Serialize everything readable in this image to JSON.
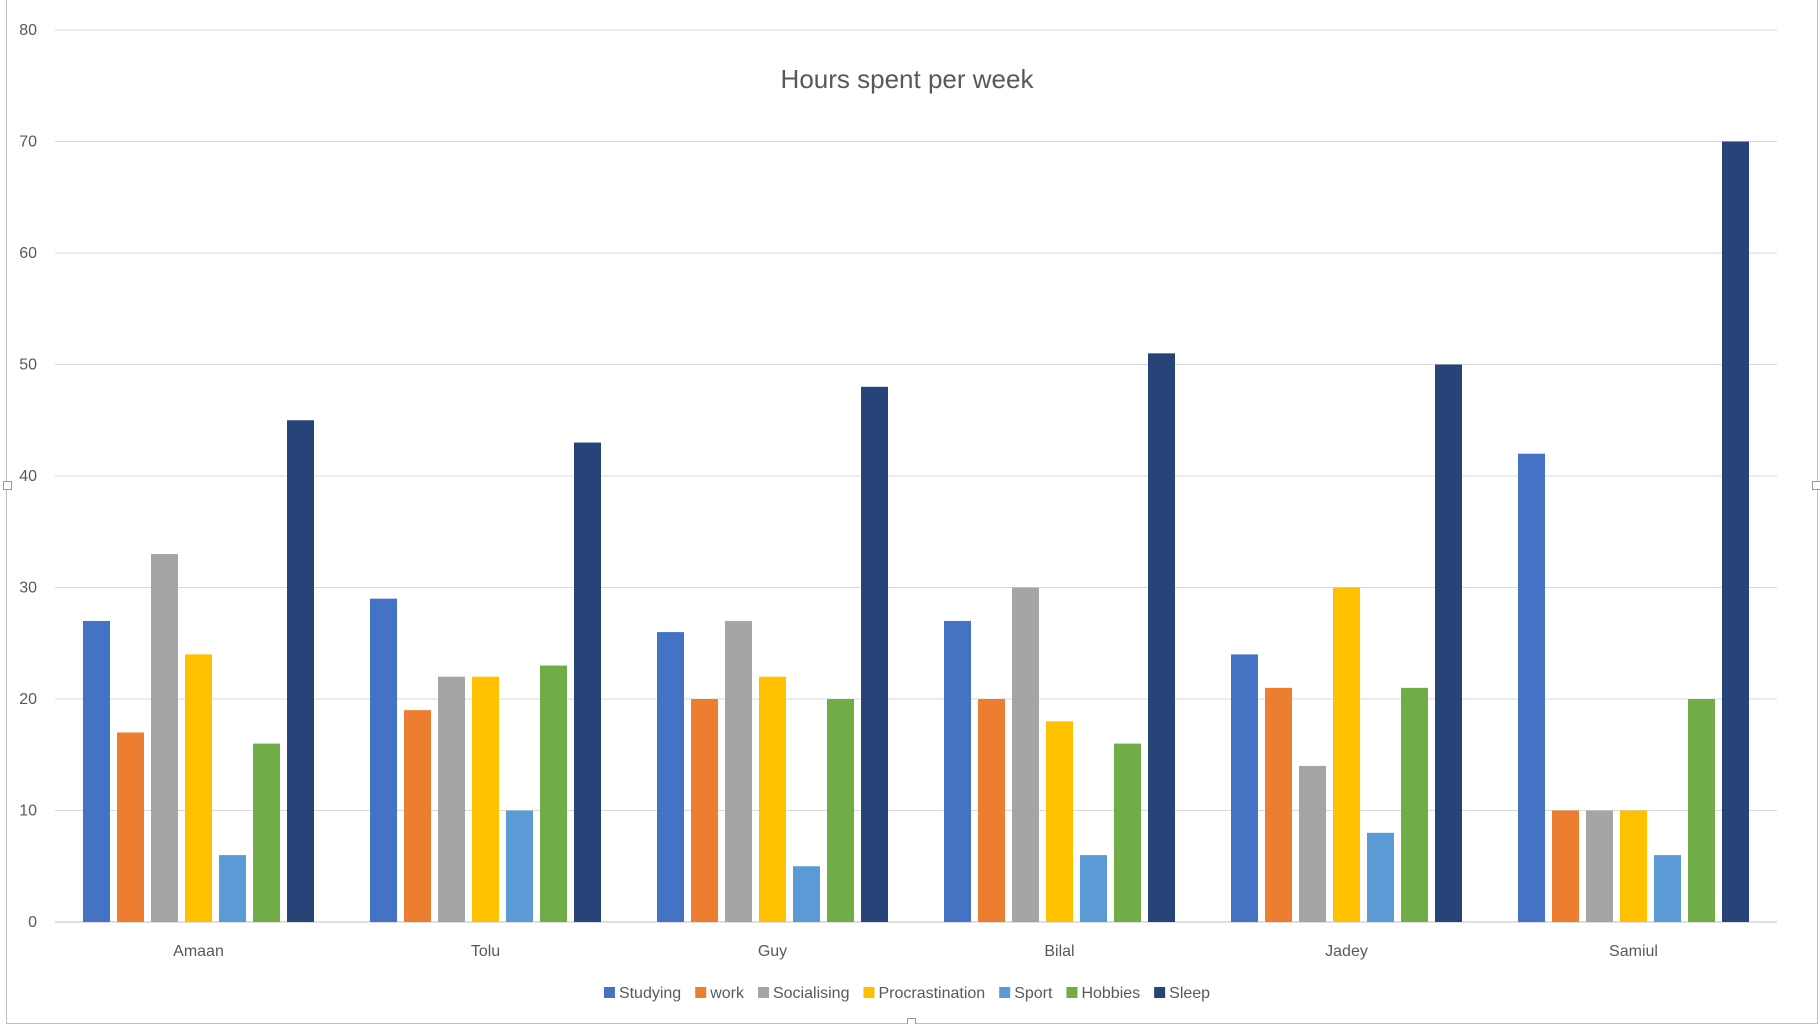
{
  "chart_data": {
    "type": "bar",
    "title": "Hours spent per week",
    "xlabel": "",
    "ylabel": "",
    "categories": [
      "Amaan",
      "Tolu",
      "Guy",
      "Bilal",
      "Jadey",
      "Samiul"
    ],
    "ylim": [
      0,
      80
    ],
    "yticks": [
      0,
      10,
      20,
      30,
      40,
      50,
      60,
      70,
      80
    ],
    "grid": true,
    "legend_position": "bottom",
    "series": [
      {
        "name": "Studying",
        "color": "#4472C4",
        "values": [
          27,
          29,
          26,
          27,
          24,
          42
        ]
      },
      {
        "name": "work",
        "color": "#ED7D31",
        "values": [
          17,
          19,
          20,
          20,
          21,
          10
        ]
      },
      {
        "name": "Socialising",
        "color": "#A5A5A5",
        "values": [
          33,
          22,
          27,
          30,
          14,
          10
        ]
      },
      {
        "name": "Procrastination",
        "color": "#FFC000",
        "values": [
          24,
          22,
          22,
          18,
          30,
          10
        ]
      },
      {
        "name": "Sport",
        "color": "#5B9BD5",
        "values": [
          6,
          10,
          5,
          6,
          8,
          6
        ]
      },
      {
        "name": "Hobbies",
        "color": "#70AD47",
        "values": [
          16,
          23,
          20,
          16,
          21,
          20
        ]
      },
      {
        "name": "Sleep",
        "color": "#264478",
        "values": [
          45,
          43,
          48,
          51,
          50,
          70
        ]
      }
    ]
  }
}
